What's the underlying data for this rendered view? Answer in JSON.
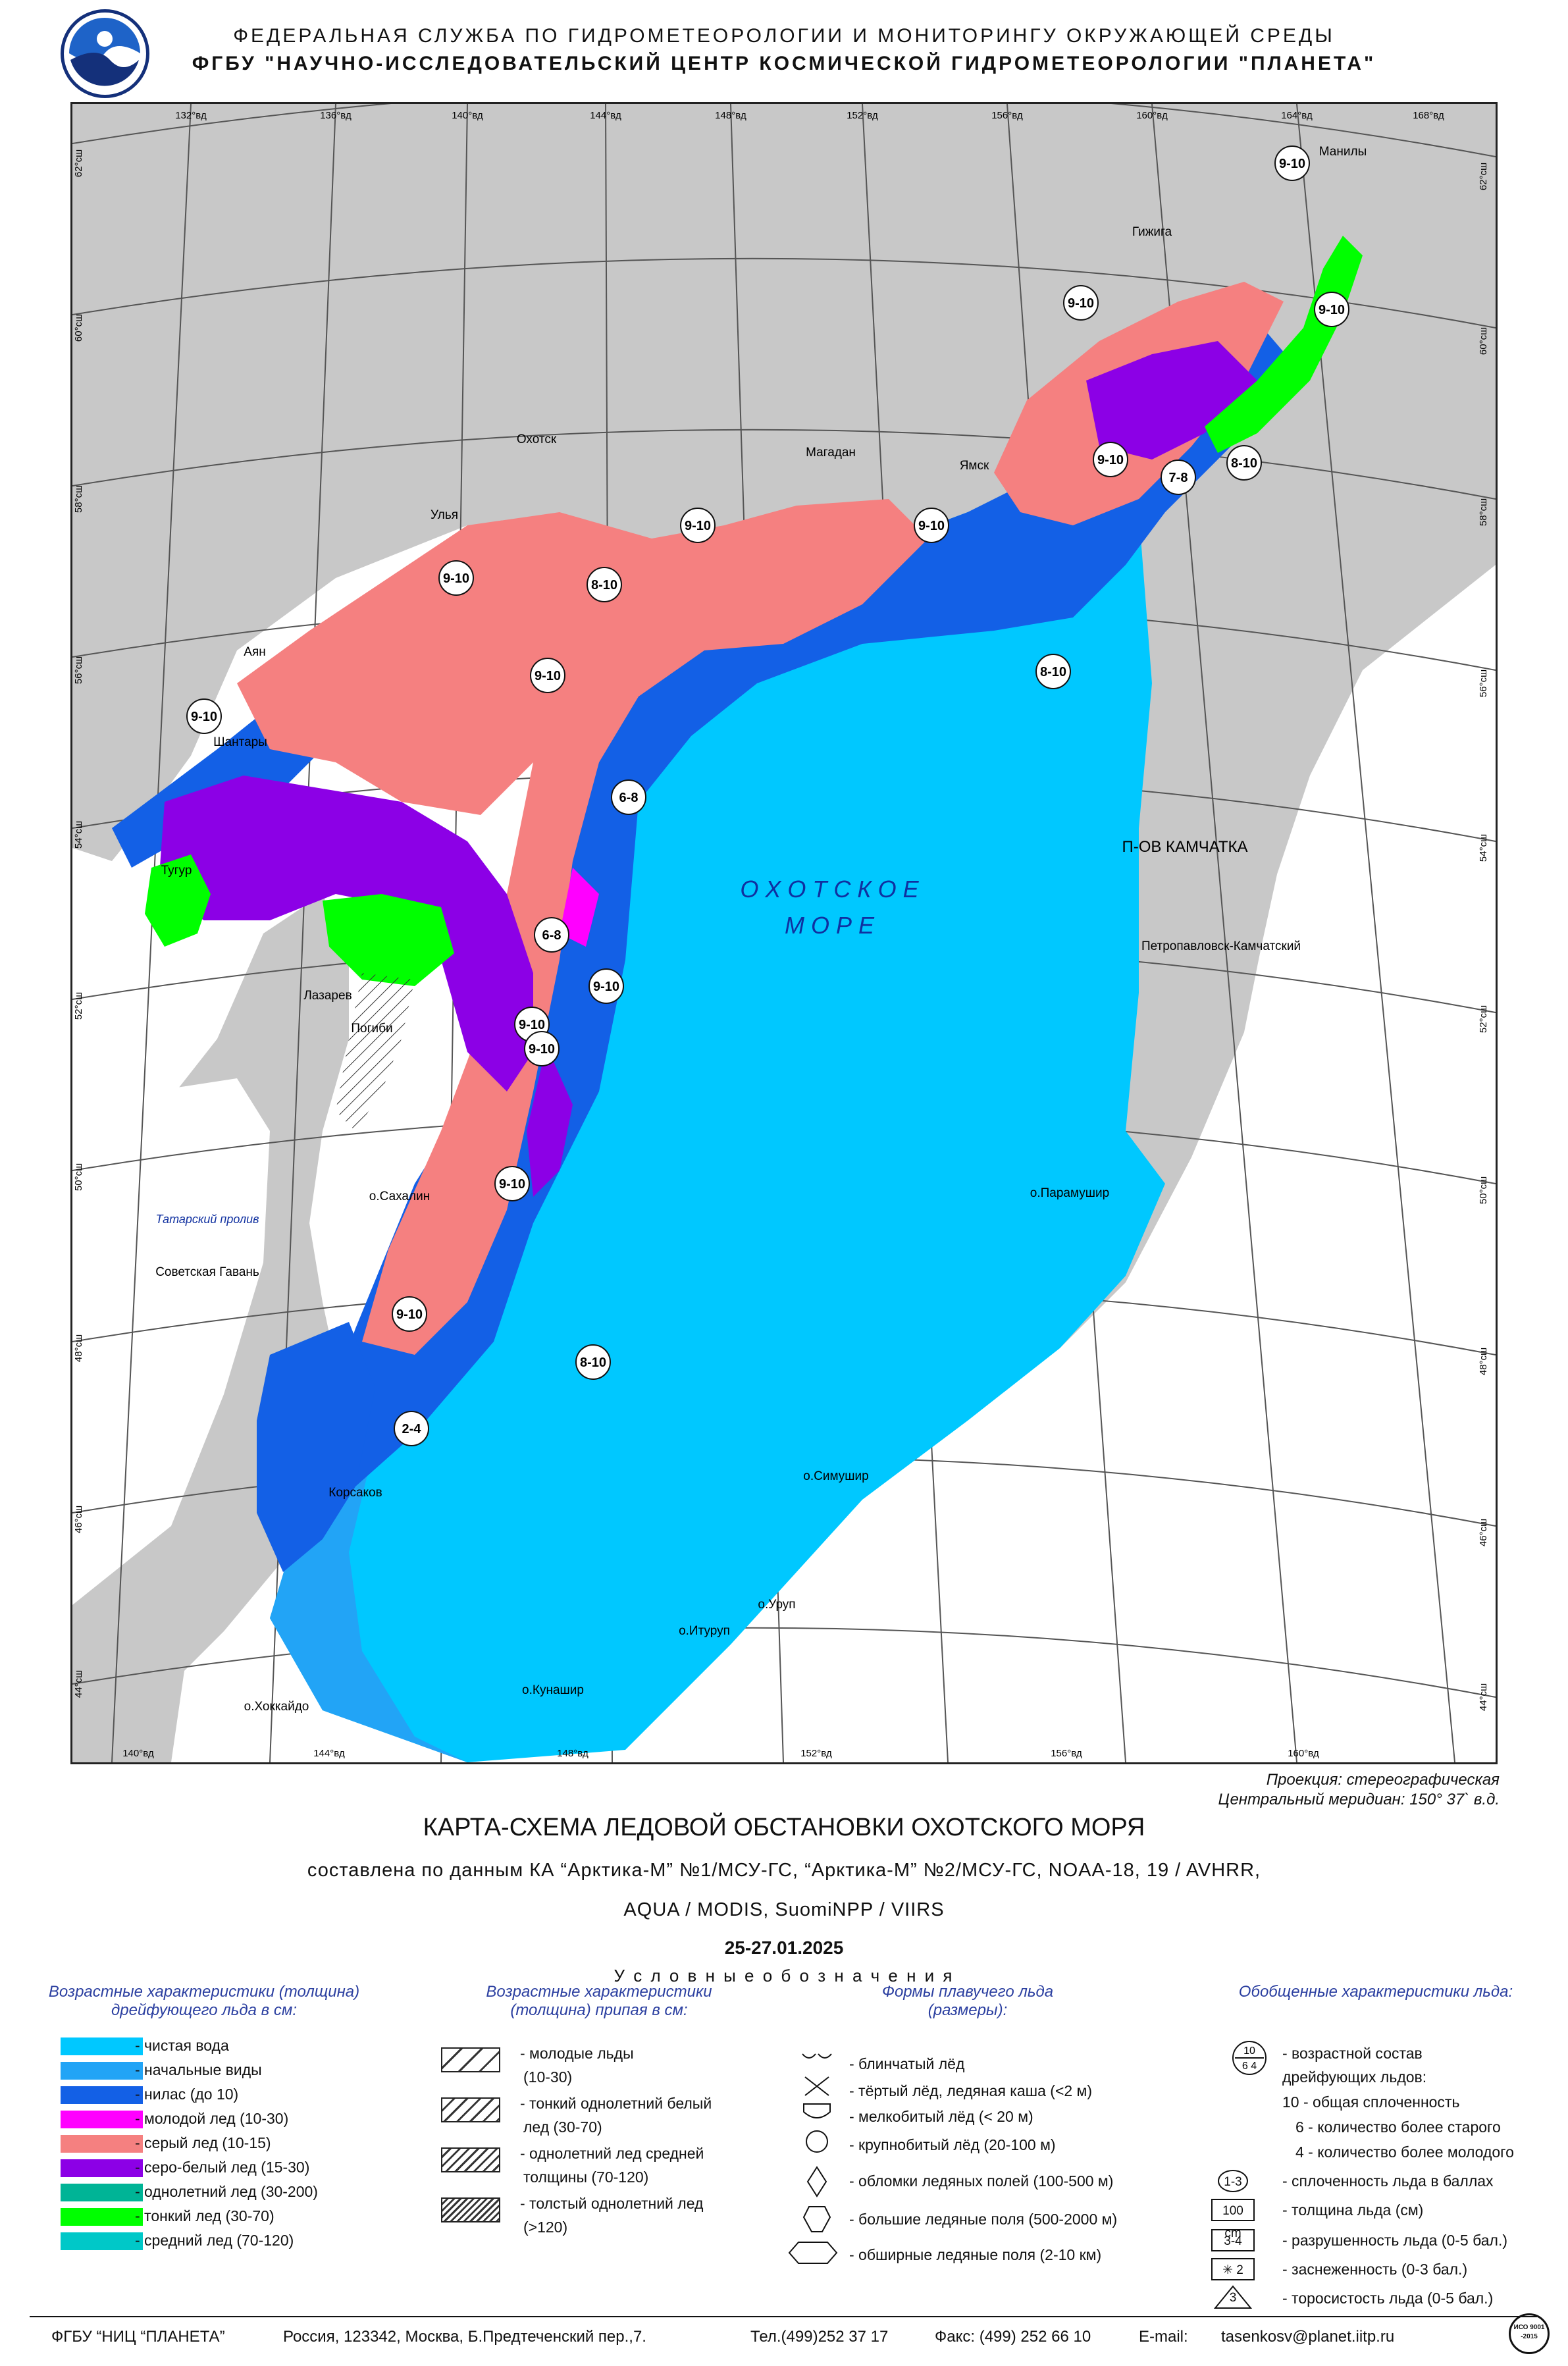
{
  "header": {
    "line1": "ФЕДЕРАЛЬНАЯ СЛУЖБА ПО ГИДРОМЕТЕОРОЛОГИИ И МОНИТОРИНГУ ОКРУЖАЮЩЕЙ СРЕДЫ",
    "line2": "ФГБУ \"НАУЧНО-ИССЛЕДОВАТЕЛЬСКИЙ ЦЕНТР КОСМИЧЕСКОЙ ГИДРОМЕТЕОРОЛОГИИ \"ПЛАНЕТА\""
  },
  "map": {
    "sea_name_1": "О Х О Т С К О Е",
    "sea_name_2": "М О Р Е",
    "peninsula": "П-ОВ КАМЧАТКА",
    "strait": "Татарский пролив",
    "top_longitudes": [
      "132°вд",
      "136°вд",
      "140°вд",
      "144°вд",
      "148°вд",
      "152°вд",
      "156°вд",
      "160°вд",
      "164°вд",
      "168°вд"
    ],
    "bottom_longitudes": [
      "140°вд",
      "144°вд",
      "148°вд",
      "152°вд",
      "156°вд",
      "160°вд"
    ],
    "left_latitudes": [
      "62°сш",
      "60°сш",
      "58°сш",
      "56°сш",
      "54°сш",
      "52°сш",
      "50°сш",
      "48°сш",
      "46°сш",
      "44°сш"
    ],
    "right_latitudes": [
      "62°сш",
      "60°сш",
      "58°сш",
      "56°сш",
      "54°сш",
      "52°сш",
      "50°сш",
      "48°сш",
      "46°сш",
      "44°сш"
    ],
    "places": [
      "Манилы",
      "Гижига",
      "Магадан",
      "Ямск",
      "Охотск",
      "Улья",
      "Аян",
      "Шантары",
      "Тугур",
      "Лазарев",
      "Погиби",
      "о.Сахалин",
      "Советская Гавань",
      "Корсаков",
      "о.Хоккайдо",
      "о.Кунашир",
      "о.Итуруп",
      "о.Уруп",
      "о.Симушир",
      "о.Парамушир",
      "Петропавловск-Камчатский"
    ],
    "ice_concentration_labels": [
      "9-10",
      "9-10",
      "9-10",
      "9-10",
      "9-10",
      "8-10",
      "7-8",
      "9-10",
      "8-10",
      "8-10",
      "9-10",
      "6-8",
      "9-10",
      "6-8",
      "9-10",
      "9-10",
      "9-10",
      "9-10",
      "8-10",
      "9-10",
      "2-4",
      "9-10"
    ],
    "projection": "Проекция: стереографическая",
    "meridian": "Центральный меридиан: 150° 37` в.д."
  },
  "colors": {
    "land": "#c8c8c8",
    "clear_water": "#00c8ff",
    "initial_ice": "#22a4f6",
    "nilas": "#1360e6",
    "young_ice": "#ff00ff",
    "grey_ice": "#f58080",
    "grey_white_ice": "#8c00e6",
    "first_year": "#00b496",
    "thin_first_year": "#00ff00",
    "medium_first_year": "#00c8c8"
  },
  "titles": {
    "main": "КАРТА-СХЕМА ЛЕДОВОЙ ОБСТАНОВКИ ОХОТСКОГО МОРЯ",
    "sub1": "составлена по данным КА “Арктика-М” №1/МСУ-ГС, “Арктика-М” №2/МСУ-ГС, NOAA-18, 19 / AVHRR,",
    "sub2": "AQUA / MODIS, SuomiNPP / VIIRS",
    "date": "25-27.01.2025",
    "legend_title": "У с л о в н ы е       о б о з н а ч е н и я"
  },
  "legend": {
    "col1_title": "Возрастные характеристики (толщина) дрейфующего льда в см:",
    "col1": [
      "- чистая вода",
      "- начальные виды",
      "- нилас (до 10)",
      "- молодой лед (10-30)",
      "- серый лед (10-15)",
      "- серо-белый лед (15-30)",
      "- однолетний лед (30-200)",
      "- тонкий лед (30-70)",
      "- средний лед (70-120)"
    ],
    "col2_title": "Возрастные характеристики (толщина) припая в см:",
    "col2": [
      {
        "l1": "- молодые льды",
        "l2": "(10-30)"
      },
      {
        "l1": "- тонкий однолетний белый",
        "l2": "лед (30-70)"
      },
      {
        "l1": "- однолетний лед средней",
        "l2": "толщины (70-120)"
      },
      {
        "l1": "- толстый однолетний лед",
        "l2": "(>120)"
      }
    ],
    "col3_title": "Формы плавучего льда (размеры):",
    "col3": [
      "- блинчатый лёд",
      "- тёртый лёд, ледяная каша (<2 м)",
      "- мелкобитый лёд (< 20 м)",
      "- крупнобитый лёд (20-100 м)",
      "- обломки ледяных полей (100-500 м)",
      "- большие ледяные поля (500-2000 м)",
      "- обширные ледяные поля (2-10 км)"
    ],
    "col4_title": "Обобщенные характеристики льда:",
    "col4_symbol_top": "10",
    "col4_symbol_bottom": "6 4",
    "col4_lines": [
      "- возрастной состав",
      "дрейфующих льдов:",
      "10 - общая сплоченность",
      "6 - количество более старого",
      "4 - количество более молодого"
    ],
    "col4_items": [
      {
        "sym": "1-3",
        "text": "- сплоченность льда в баллах"
      },
      {
        "sym": "100 cm",
        "text": "- толщина льда (см)"
      },
      {
        "sym": "3-4",
        "text": "- разрушенность льда (0-5 бал.)"
      },
      {
        "sym": "✳ 2",
        "text": "- заснеженность (0-3 бал.)"
      },
      {
        "sym": "3",
        "text": "- торосистость льда (0-5 бал.)"
      }
    ]
  },
  "footer": {
    "org": "ФГБУ  “НИЦ  “ПЛАНЕТА”",
    "address": "Россия, 123342,      Москва, Б.Предтеченский пер.,7.",
    "phone": "Тел.(499)252 37 17",
    "fax": "Факс: (499) 252 66 10",
    "email_label": "E-mail:",
    "email": "tasenkosv@planet.iitp.ru",
    "iso": "ИСО 9001 -2015"
  }
}
